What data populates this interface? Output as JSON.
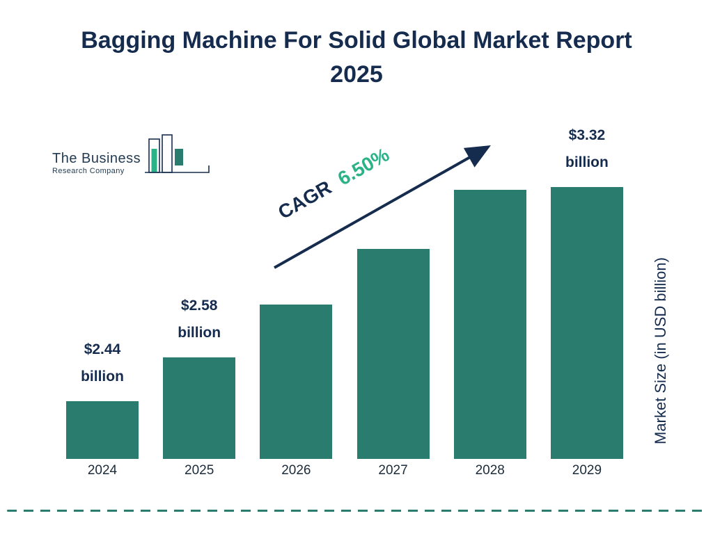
{
  "logo": {
    "line1": "The Business",
    "line2": "Research Company"
  },
  "chart_data": {
    "type": "bar",
    "title": "Bagging Machine For Solid Global Market Report 2025",
    "categories": [
      "2024",
      "2025",
      "2026",
      "2027",
      "2028",
      "2029"
    ],
    "values": [
      2.44,
      2.58,
      2.75,
      2.93,
      3.12,
      3.32
    ],
    "annotations": [
      {
        "index": 0,
        "line1": "$2.44",
        "line2": "billion"
      },
      {
        "index": 1,
        "line1": "$2.58",
        "line2": "billion"
      },
      {
        "index": 5,
        "line1": "$3.32",
        "line2": "billion"
      }
    ],
    "cagr": {
      "label": "CAGR",
      "value": "6.50%"
    },
    "xlabel": "",
    "ylabel": "Market Size (in USD billion)",
    "grid": false,
    "legend": false,
    "bar_color": "#2a7d6e",
    "title_color": "#162c4e",
    "accent_color": "#2bb287"
  }
}
